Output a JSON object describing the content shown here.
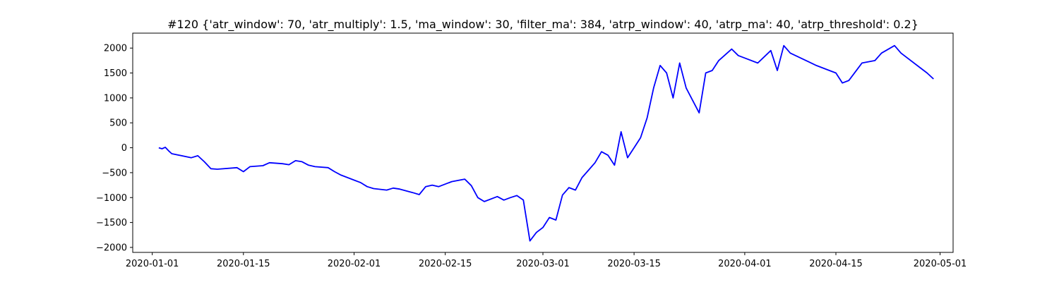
{
  "chart_data": {
    "type": "line",
    "title": "#120 {'atr_window': 70, 'atr_multiply': 1.5, 'ma_window': 30, 'filter_ma': 384, 'atrp_window': 40, 'atrp_ma': 40, 'atrp_threshold': 0.2}",
    "xlabel": "",
    "ylabel": "",
    "xlim": [
      "2019-12-29",
      "2020-05-03"
    ],
    "ylim": [
      -2100,
      2300
    ],
    "x_ticks": [
      "2020-01-01",
      "2020-01-15",
      "2020-02-01",
      "2020-02-15",
      "2020-03-01",
      "2020-03-15",
      "2020-04-01",
      "2020-04-15",
      "2020-05-01"
    ],
    "y_ticks": [
      2000,
      1500,
      1000,
      500,
      0,
      -500,
      -1000,
      -1500,
      -2000
    ],
    "y_tick_labels": [
      "2000",
      "1500",
      "1000",
      "500",
      "0",
      "−500",
      "−1000",
      "−1500",
      "−2000"
    ],
    "grid": false,
    "series_color": "#0000ff",
    "series": [
      {
        "x": [
          "2020-01-02",
          "2020-01-02T12:00",
          "2020-01-03",
          "2020-01-03T12:00",
          "2020-01-04",
          "2020-01-07",
          "2020-01-08",
          "2020-01-09",
          "2020-01-10",
          "2020-01-11",
          "2020-01-14",
          "2020-01-15",
          "2020-01-16",
          "2020-01-18",
          "2020-01-19",
          "2020-01-21",
          "2020-01-22",
          "2020-01-23",
          "2020-01-24",
          "2020-01-25",
          "2020-01-26",
          "2020-01-28",
          "2020-01-29",
          "2020-01-30",
          "2020-02-01",
          "2020-02-02",
          "2020-02-03",
          "2020-02-04",
          "2020-02-06",
          "2020-02-07",
          "2020-02-08",
          "2020-02-10",
          "2020-02-11",
          "2020-02-12",
          "2020-02-13",
          "2020-02-14",
          "2020-02-16",
          "2020-02-18",
          "2020-02-19",
          "2020-02-20",
          "2020-02-21",
          "2020-02-23",
          "2020-02-24",
          "2020-02-25",
          "2020-02-26",
          "2020-02-27",
          "2020-02-28",
          "2020-02-29",
          "2020-03-01",
          "2020-03-02",
          "2020-03-03",
          "2020-03-04",
          "2020-03-05",
          "2020-03-06",
          "2020-03-07",
          "2020-03-08",
          "2020-03-09",
          "2020-03-10",
          "2020-03-11",
          "2020-03-12",
          "2020-03-13",
          "2020-03-14",
          "2020-03-15",
          "2020-03-16",
          "2020-03-17",
          "2020-03-18",
          "2020-03-19",
          "2020-03-20",
          "2020-03-21",
          "2020-03-22",
          "2020-03-23",
          "2020-03-24",
          "2020-03-25",
          "2020-03-26",
          "2020-03-27",
          "2020-03-28",
          "2020-03-30",
          "2020-03-31",
          "2020-04-01",
          "2020-04-03",
          "2020-04-05",
          "2020-04-06",
          "2020-04-07",
          "2020-04-08",
          "2020-04-12",
          "2020-04-14",
          "2020-04-15",
          "2020-04-16",
          "2020-04-17",
          "2020-04-19",
          "2020-04-21",
          "2020-04-22",
          "2020-04-24",
          "2020-04-25",
          "2020-04-28",
          "2020-04-29",
          "2020-04-30"
        ],
        "values": [
          0,
          -20,
          10,
          -60,
          -120,
          -200,
          -160,
          -280,
          -420,
          -430,
          -400,
          -480,
          -380,
          -360,
          -300,
          -320,
          -340,
          -260,
          -280,
          -350,
          -380,
          -400,
          -480,
          -550,
          -650,
          -700,
          -780,
          -820,
          -850,
          -810,
          -830,
          -900,
          -940,
          -780,
          -750,
          -780,
          -680,
          -630,
          -760,
          -1000,
          -1080,
          -980,
          -1050,
          -1000,
          -960,
          -1050,
          -1870,
          -1700,
          -1600,
          -1400,
          -1450,
          -950,
          -800,
          -850,
          -600,
          -450,
          -300,
          -80,
          -150,
          -350,
          320,
          -200,
          0,
          200,
          600,
          1200,
          1650,
          1500,
          1000,
          1700,
          1200,
          950,
          700,
          1500,
          1550,
          1750,
          1980,
          1850,
          1800,
          1700,
          1950,
          1550,
          2050,
          1900,
          1650,
          1550,
          1500,
          1300,
          1350,
          1700,
          1750,
          1900,
          2050,
          1900,
          1600,
          1500,
          1380
        ]
      }
    ]
  }
}
